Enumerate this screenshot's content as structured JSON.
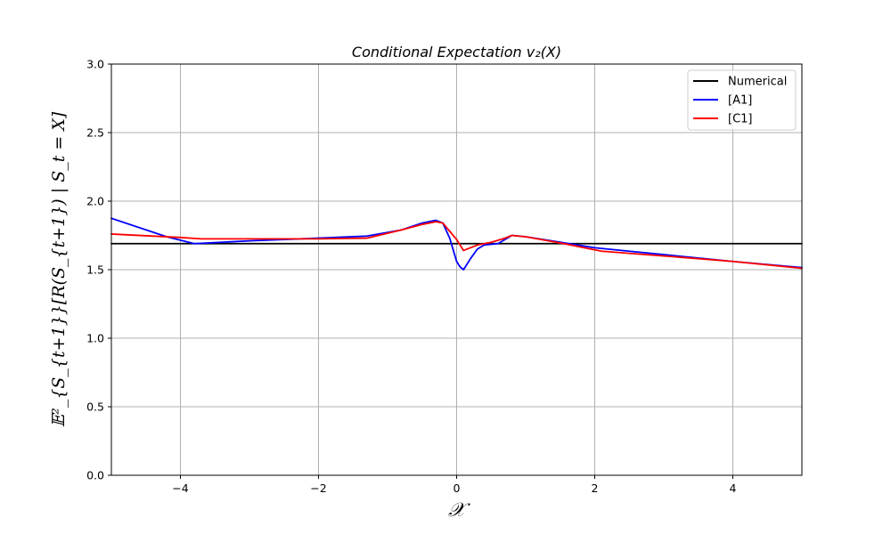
{
  "chart_data": {
    "type": "line",
    "title": "Conditional Expectation v₂(X)",
    "xlabel": "𝒳",
    "ylabel": "𝔼²_{S_{t+1}}[R(S_{t+1}) | S_t = X]",
    "xlim": [
      -5,
      5
    ],
    "ylim": [
      0.0,
      3.0
    ],
    "xticks": [
      -4,
      -2,
      0,
      2,
      4
    ],
    "xtick_labels": [
      "−4",
      "−2",
      "0",
      "2",
      "4"
    ],
    "yticks": [
      0.0,
      0.5,
      1.0,
      1.5,
      2.0,
      2.5,
      3.0
    ],
    "ytick_labels": [
      "0.0",
      "0.5",
      "1.0",
      "1.5",
      "2.0",
      "2.5",
      "3.0"
    ],
    "grid": true,
    "legend_position": "top-right",
    "series": [
      {
        "name": "Numerical",
        "color": "#000000",
        "x": [
          -5,
          5
        ],
        "y": [
          1.69,
          1.69
        ]
      },
      {
        "name": "[A1]",
        "color": "#0000ff",
        "x": [
          -5.0,
          -4.2,
          -3.8,
          -3.0,
          -2.0,
          -1.3,
          -0.8,
          -0.5,
          -0.3,
          -0.2,
          -0.1,
          0.0,
          0.05,
          0.1,
          0.2,
          0.3,
          0.4,
          0.6,
          0.8,
          1.0,
          1.5,
          2.0,
          2.5,
          3.0,
          4.0,
          5.0
        ],
        "y": [
          1.875,
          1.74,
          1.69,
          1.71,
          1.73,
          1.745,
          1.79,
          1.84,
          1.86,
          1.84,
          1.73,
          1.56,
          1.52,
          1.5,
          1.58,
          1.65,
          1.68,
          1.69,
          1.75,
          1.74,
          1.7,
          1.66,
          1.635,
          1.61,
          1.56,
          1.515
        ]
      },
      {
        "name": "[C1]",
        "color": "#ff0000",
        "x": [
          -5.0,
          -4.0,
          -3.7,
          -3.0,
          -2.0,
          -1.3,
          -0.8,
          -0.5,
          -0.3,
          -0.2,
          -0.1,
          0.0,
          0.1,
          0.3,
          0.5,
          0.7,
          0.8,
          1.0,
          1.5,
          2.1,
          3.0,
          4.0,
          5.0
        ],
        "y": [
          1.76,
          1.735,
          1.725,
          1.725,
          1.725,
          1.73,
          1.79,
          1.83,
          1.85,
          1.84,
          1.78,
          1.72,
          1.64,
          1.68,
          1.7,
          1.73,
          1.75,
          1.74,
          1.695,
          1.635,
          1.6,
          1.56,
          1.51
        ]
      }
    ]
  }
}
